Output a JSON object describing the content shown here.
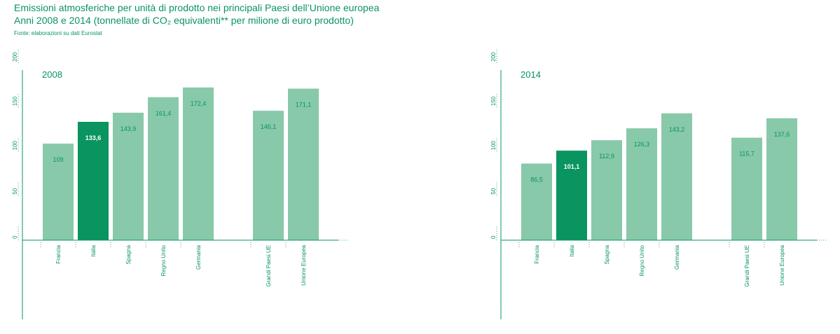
{
  "header": {
    "title_line1": "Emissioni atmosferiche per unità di prodotto nei principali Paesi dell’Unione europea",
    "title_line2": "Anni 2008 e 2014 (tonnellate di CO₂ equivalenti** per milione di euro prodotto)",
    "source": "Fonte: elaborazioni su dati Eurostat"
  },
  "colors": {
    "bar": "#88c9aa",
    "bar_highlight": "#0a9460",
    "axis": "#0a9460"
  },
  "chart_data": [
    {
      "type": "bar",
      "title": "2008",
      "categories": [
        "Francia",
        "Italia",
        "Spagna",
        "Regno Unito",
        "Germania",
        "Grandi Paesi UE",
        "Unione Europea"
      ],
      "values": [
        109,
        133.6,
        143.9,
        161.4,
        172.4,
        146.1,
        171.1
      ],
      "value_labels": [
        "109",
        "133,6",
        "143,9",
        "161,4",
        "172,4",
        "146,1",
        "171,1"
      ],
      "highlight": "Italia",
      "ylim": [
        0,
        200
      ],
      "yticks": [
        "0",
        "50",
        "100",
        "150",
        "200"
      ],
      "grid": false
    },
    {
      "type": "bar",
      "title": "2014",
      "categories": [
        "Francia",
        "Italia",
        "Spagna",
        "Regno Unito",
        "Germania",
        "Grandi Paesi UE",
        "Unione Europea"
      ],
      "values": [
        86.5,
        101.1,
        112.9,
        126.3,
        143.2,
        115.7,
        137.6
      ],
      "value_labels": [
        "86,5",
        "101,1",
        "112,9",
        "126,3",
        "143,2",
        "115,7",
        "137,6"
      ],
      "highlight": "Italia",
      "ylim": [
        0,
        200
      ],
      "yticks": [
        "0",
        "50",
        "100",
        "150",
        "200"
      ],
      "grid": false
    }
  ]
}
